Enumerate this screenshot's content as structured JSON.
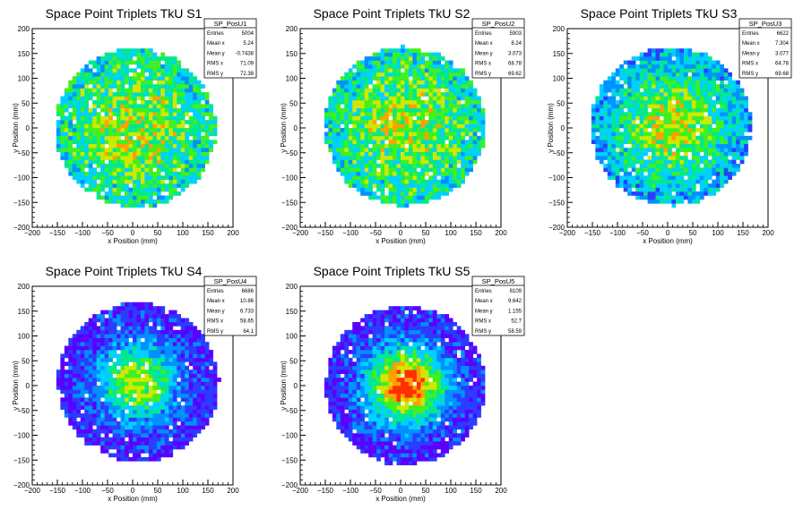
{
  "axis_tick_labels": [
    "−200",
    "−150",
    "−100",
    "−50",
    "0",
    "50",
    "100",
    "150",
    "200"
  ],
  "colors": {
    "palette": [
      "#5a00ff",
      "#2a3cff",
      "#0090ff",
      "#00d0ff",
      "#00e890",
      "#40f020",
      "#d0e800",
      "#ffa000",
      "#ff3000"
    ]
  },
  "chart_data": [
    {
      "type": "heatmap",
      "title": "Space Point Triplets TkU S1",
      "xlabel": "x Position (mm)",
      "ylabel": "y Position (mm)",
      "xlim": [
        -200,
        200
      ],
      "ylim": [
        -200,
        200
      ],
      "grid": false,
      "legend_placement": "top-right",
      "distribution": {
        "center_x": 5,
        "center_y": 0,
        "radius": 160,
        "profile": "flat",
        "max_color_level": 8
      },
      "stats": {
        "name": "SP_PosU1",
        "rows": [
          {
            "label": "Entries",
            "value": "5004"
          },
          {
            "label": "Mean x",
            "value": "5.24"
          },
          {
            "label": "Mean y",
            "value": "-0.7438"
          },
          {
            "label": "RMS x",
            "value": "71.09"
          },
          {
            "label": "RMS y",
            "value": "72.38"
          }
        ]
      }
    },
    {
      "type": "heatmap",
      "title": "Space Point Triplets TkU S2",
      "xlabel": "x Position (mm)",
      "ylabel": "y Position (mm)",
      "xlim": [
        -200,
        200
      ],
      "ylim": [
        -200,
        200
      ],
      "grid": false,
      "legend_placement": "top-right",
      "distribution": {
        "center_x": 8,
        "center_y": 3,
        "radius": 160,
        "profile": "flat",
        "max_color_level": 8
      },
      "stats": {
        "name": "SP_PosU2",
        "rows": [
          {
            "label": "Entries",
            "value": "5903"
          },
          {
            "label": "Mean x",
            "value": "8.24"
          },
          {
            "label": "Mean y",
            "value": "3.073"
          },
          {
            "label": "RMS x",
            "value": "68.78"
          },
          {
            "label": "RMS y",
            "value": "69.62"
          }
        ]
      }
    },
    {
      "type": "heatmap",
      "title": "Space Point Triplets TkU S3",
      "xlabel": "x Position (mm)",
      "ylabel": "y Position (mm)",
      "xlim": [
        -200,
        200
      ],
      "ylim": [
        -200,
        200
      ],
      "grid": false,
      "legend_placement": "top-right",
      "distribution": {
        "center_x": 7,
        "center_y": 3,
        "radius": 160,
        "profile": "medium",
        "max_color_level": 8
      },
      "stats": {
        "name": "SP_PosU3",
        "rows": [
          {
            "label": "Entries",
            "value": "6622"
          },
          {
            "label": "Mean x",
            "value": "7.304"
          },
          {
            "label": "Mean y",
            "value": "3.077"
          },
          {
            "label": "RMS x",
            "value": "64.78"
          },
          {
            "label": "RMS y",
            "value": "69.68"
          }
        ]
      }
    },
    {
      "type": "heatmap",
      "title": "Space Point Triplets TkU S4",
      "xlabel": "x Position (mm)",
      "ylabel": "y Position (mm)",
      "xlim": [
        -200,
        200
      ],
      "ylim": [
        -200,
        200
      ],
      "grid": false,
      "legend_placement": "top-right",
      "distribution": {
        "center_x": 11,
        "center_y": 7,
        "radius": 160,
        "profile": "peaked",
        "max_color_level": 6
      },
      "stats": {
        "name": "SP_PosU4",
        "rows": [
          {
            "label": "Entries",
            "value": "6686"
          },
          {
            "label": "Mean x",
            "value": "10.86"
          },
          {
            "label": "Mean y",
            "value": "6.733"
          },
          {
            "label": "RMS x",
            "value": "58.65"
          },
          {
            "label": "RMS y",
            "value": "64.1"
          }
        ]
      }
    },
    {
      "type": "heatmap",
      "title": "Space Point Triplets TkU S5",
      "xlabel": "x Position (mm)",
      "ylabel": "y Position (mm)",
      "xlim": [
        -200,
        200
      ],
      "ylim": [
        -200,
        200
      ],
      "grid": false,
      "legend_placement": "top-right",
      "distribution": {
        "center_x": 10,
        "center_y": 1,
        "radius": 160,
        "profile": "peaked",
        "max_color_level": 8
      },
      "stats": {
        "name": "SP_PosU5",
        "rows": [
          {
            "label": "Entries",
            "value": "8109"
          },
          {
            "label": "Mean x",
            "value": "9.642"
          },
          {
            "label": "Mean y",
            "value": "1.155"
          },
          {
            "label": "RMS x",
            "value": "52.7"
          },
          {
            "label": "RMS y",
            "value": "58.59"
          }
        ]
      }
    }
  ]
}
